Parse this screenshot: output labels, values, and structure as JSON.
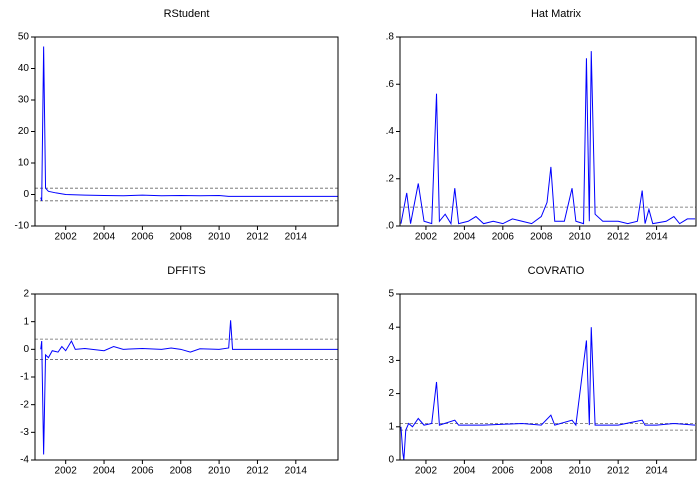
{
  "chart_data": [
    {
      "type": "line",
      "title": "RStudent",
      "x": [
        2000.7,
        2000.75,
        2000.85,
        2000.95,
        2001.1,
        2001.5,
        2002,
        2003,
        2004,
        2005,
        2006,
        2007,
        2008,
        2009,
        2010,
        2010.5,
        2011,
        2012,
        2013,
        2014,
        2015,
        2016.2
      ],
      "series": [
        {
          "color": "#0000ff",
          "values": [
            -1,
            -2,
            47,
            2,
            1,
            0.5,
            0,
            -0.2,
            -0.3,
            -0.4,
            -0.2,
            -0.4,
            -0.3,
            -0.4,
            -0.3,
            -0.6,
            -0.6,
            -0.6,
            -0.6,
            -0.6,
            -0.6,
            -0.6
          ]
        }
      ],
      "xlim": [
        2000.4,
        2016.2
      ],
      "xticks": [
        2002,
        2004,
        2006,
        2008,
        2010,
        2012,
        2014
      ],
      "ylim": [
        -10,
        50
      ],
      "yticks": [
        -10,
        0,
        10,
        20,
        30,
        40,
        50
      ],
      "reference_lines": [
        2,
        -2
      ]
    },
    {
      "type": "line",
      "title": "Hat Matrix",
      "x": [
        2000.7,
        2001.0,
        2001.2,
        2001.6,
        2001.9,
        2002.3,
        2002.55,
        2002.7,
        2003.0,
        2003.3,
        2003.5,
        2003.7,
        2004.2,
        2004.6,
        2005,
        2005.5,
        2006,
        2006.5,
        2007,
        2007.5,
        2008,
        2008.3,
        2008.5,
        2008.7,
        2009.2,
        2009.6,
        2009.8,
        2010.2,
        2010.35,
        2010.5,
        2010.6,
        2010.8,
        2011.2,
        2012,
        2012.5,
        2013,
        2013.25,
        2013.4,
        2013.6,
        2013.8,
        2014.5,
        2014.9,
        2015.2,
        2015.6,
        2016.0
      ],
      "series": [
        {
          "color": "#0000ff",
          "values": [
            0.01,
            0.14,
            0.01,
            0.18,
            0.02,
            0.01,
            0.56,
            0.02,
            0.05,
            0.01,
            0.16,
            0.01,
            0.02,
            0.04,
            0.01,
            0.02,
            0.01,
            0.03,
            0.02,
            0.01,
            0.04,
            0.1,
            0.25,
            0.02,
            0.02,
            0.16,
            0.02,
            0.01,
            0.71,
            0.02,
            0.74,
            0.05,
            0.02,
            0.02,
            0.01,
            0.02,
            0.15,
            0.01,
            0.07,
            0.01,
            0.02,
            0.04,
            0.01,
            0.03,
            0.03
          ]
        }
      ],
      "xlim": [
        2000.65,
        2016.05
      ],
      "xticks": [
        2002,
        2004,
        2006,
        2008,
        2010,
        2012,
        2014
      ],
      "ylim": [
        0,
        0.8
      ],
      "yticks": [
        {
          "value": 0,
          "label": ".0"
        },
        {
          "value": 0.2,
          "label": ".2"
        },
        {
          "value": 0.4,
          "label": ".4"
        },
        {
          "value": 0.6,
          "label": ".6"
        },
        {
          "value": 0.8,
          "label": ".8"
        }
      ],
      "reference_lines": [
        0.08
      ]
    },
    {
      "type": "line",
      "title": "DFFITS",
      "x": [
        2000.7,
        2000.75,
        2000.85,
        2000.95,
        2001.1,
        2001.3,
        2001.6,
        2001.8,
        2002,
        2002.3,
        2002.5,
        2003,
        2004,
        2004.5,
        2005,
        2006,
        2007,
        2007.5,
        2008,
        2008.5,
        2009,
        2010,
        2010.5,
        2010.6,
        2010.7,
        2011,
        2012,
        2013,
        2014,
        2015,
        2016.2
      ],
      "series": [
        {
          "color": "#0000ff",
          "values": [
            0,
            0.3,
            -3.8,
            -0.2,
            -0.3,
            -0.05,
            -0.1,
            0.1,
            -0.05,
            0.3,
            0,
            0.03,
            -0.05,
            0.1,
            0,
            0.03,
            0,
            0.05,
            0,
            -0.1,
            0.02,
            0,
            0.05,
            1.05,
            0,
            0,
            0,
            0,
            0,
            0,
            0
          ]
        }
      ],
      "xlim": [
        2000.4,
        2016.2
      ],
      "xticks": [
        2002,
        2004,
        2006,
        2008,
        2010,
        2012,
        2014
      ],
      "ylim": [
        -4,
        2
      ],
      "yticks": [
        -4,
        -3,
        -2,
        -1,
        0,
        1,
        2
      ],
      "reference_lines": [
        0.37,
        -0.37
      ]
    },
    {
      "type": "line",
      "title": "COVRATIO",
      "x": [
        2000.7,
        2000.8,
        2000.85,
        2000.95,
        2001.1,
        2001.3,
        2001.6,
        2001.9,
        2002.3,
        2002.55,
        2002.7,
        2003.5,
        2003.7,
        2005,
        2007,
        2008,
        2008.5,
        2008.7,
        2009.6,
        2009.8,
        2010.35,
        2010.5,
        2010.6,
        2010.8,
        2012,
        2013.25,
        2013.4,
        2014,
        2014.9,
        2016.0
      ],
      "series": [
        {
          "color": "#0000ff",
          "values": [
            1.0,
            0.2,
            0,
            0.9,
            1.1,
            1.0,
            1.25,
            1.05,
            1.1,
            2.35,
            1.05,
            1.2,
            1.05,
            1.05,
            1.1,
            1.05,
            1.35,
            1.05,
            1.2,
            1.05,
            3.6,
            1.05,
            4.0,
            1.05,
            1.05,
            1.2,
            1.05,
            1.05,
            1.1,
            1.05
          ]
        }
      ],
      "xlim": [
        2000.65,
        2016.05
      ],
      "xticks": [
        2002,
        2004,
        2006,
        2008,
        2010,
        2012,
        2014
      ],
      "ylim": [
        0,
        5
      ],
      "yticks": [
        0,
        1,
        2,
        3,
        4,
        5
      ],
      "reference_lines": [
        1.1,
        0.9
      ]
    }
  ]
}
